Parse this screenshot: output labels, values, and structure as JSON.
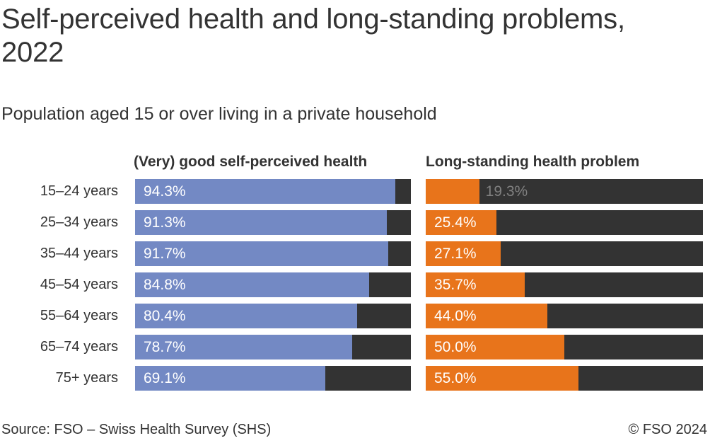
{
  "title": "Self-perceived health and long-standing problems, 2022",
  "subtitle": "Population aged 15 or over living in a private household",
  "footer": {
    "source": "Source: FSO – Swiss Health Survey (SHS)",
    "copyright": "© FSO 2024"
  },
  "chart_data": {
    "type": "bar",
    "orientation": "horizontal",
    "title": "Self-perceived health and long-standing problems, 2022",
    "subtitle": "Population aged 15 or over living in a private household",
    "categories": [
      "15–24 years",
      "25–34 years",
      "35–44 years",
      "45–54 years",
      "55–64 years",
      "65–74 years",
      "75+ years"
    ],
    "series": [
      {
        "name": "(Very) good self-perceived health",
        "color": "#7389c4",
        "values": [
          94.3,
          91.3,
          91.7,
          84.8,
          80.4,
          78.7,
          69.1
        ],
        "labels": [
          "94.3%",
          "91.3%",
          "91.7%",
          "84.8%",
          "80.4%",
          "78.7%",
          "69.1%"
        ]
      },
      {
        "name": "Long-standing health problem",
        "color": "#e8741b",
        "values": [
          19.3,
          25.4,
          27.1,
          35.7,
          44.0,
          50.0,
          55.0
        ],
        "labels": [
          "19.3%",
          "25.4%",
          "27.1%",
          "35.7%",
          "44.0%",
          "50.0%",
          "55.0%"
        ]
      }
    ],
    "xlim": [
      0,
      100
    ],
    "grid": false,
    "legend": "column-headers",
    "track_color": "#333333",
    "value_label_color_inside": "#ffffff",
    "value_label_color_outside": "#808080"
  }
}
